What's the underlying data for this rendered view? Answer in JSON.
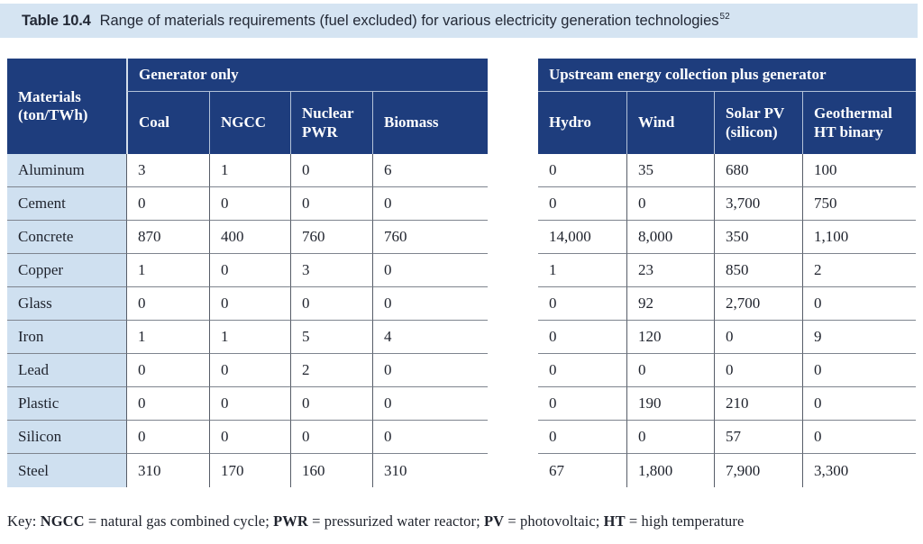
{
  "title": {
    "label": "Table 10.4",
    "text": "Range of materials requirements (fuel excluded) for various electricity generation technologies",
    "footnote": "52"
  },
  "table": {
    "corner_header": "Materials\n(ton/TWh)",
    "left_group": {
      "label": "Generator only",
      "columns": [
        "Coal",
        "NGCC",
        "Nuclear\nPWR",
        "Biomass"
      ]
    },
    "right_group": {
      "label": "Upstream energy collection plus generator",
      "columns": [
        "Hydro",
        "Wind",
        "Solar PV\n(silicon)",
        "Geothermal\nHT binary"
      ]
    },
    "rows": [
      {
        "material": "Aluminum",
        "left": [
          "3",
          "1",
          "0",
          "6"
        ],
        "right": [
          "0",
          "35",
          "680",
          "100"
        ]
      },
      {
        "material": "Cement",
        "left": [
          "0",
          "0",
          "0",
          "0"
        ],
        "right": [
          "0",
          "0",
          "3,700",
          "750"
        ]
      },
      {
        "material": "Concrete",
        "left": [
          "870",
          "400",
          "760",
          "760"
        ],
        "right": [
          "14,000",
          "8,000",
          "350",
          "1,100"
        ]
      },
      {
        "material": "Copper",
        "left": [
          "1",
          "0",
          "3",
          "0"
        ],
        "right": [
          "1",
          "23",
          "850",
          "2"
        ]
      },
      {
        "material": "Glass",
        "left": [
          "0",
          "0",
          "0",
          "0"
        ],
        "right": [
          "0",
          "92",
          "2,700",
          "0"
        ]
      },
      {
        "material": "Iron",
        "left": [
          "1",
          "1",
          "5",
          "4"
        ],
        "right": [
          "0",
          "120",
          "0",
          "9"
        ]
      },
      {
        "material": "Lead",
        "left": [
          "0",
          "0",
          "2",
          "0"
        ],
        "right": [
          "0",
          "0",
          "0",
          "0"
        ]
      },
      {
        "material": "Plastic",
        "left": [
          "0",
          "0",
          "0",
          "0"
        ],
        "right": [
          "0",
          "190",
          "210",
          "0"
        ]
      },
      {
        "material": "Silicon",
        "left": [
          "0",
          "0",
          "0",
          "0"
        ],
        "right": [
          "0",
          "0",
          "57",
          "0"
        ]
      },
      {
        "material": "Steel",
        "left": [
          "310",
          "170",
          "160",
          "310"
        ],
        "right": [
          "67",
          "1,800",
          "7,900",
          "3,300"
        ]
      }
    ]
  },
  "key": {
    "segments": [
      {
        "text": "Key: ",
        "bold": false
      },
      {
        "text": "NGCC",
        "bold": true
      },
      {
        "text": " = natural gas combined cycle; ",
        "bold": false
      },
      {
        "text": "PWR",
        "bold": true
      },
      {
        "text": " = pressurized water reactor; ",
        "bold": false
      },
      {
        "text": "PV",
        "bold": true
      },
      {
        "text": " = photovoltaic; ",
        "bold": false
      },
      {
        "text": "HT",
        "bold": true
      },
      {
        "text": " = high temperature",
        "bold": false
      }
    ]
  },
  "colors": {
    "header_bg": "#1e3d7d",
    "title_bar_bg": "#d5e4f2",
    "label_column_bg": "#cfe0f0"
  }
}
